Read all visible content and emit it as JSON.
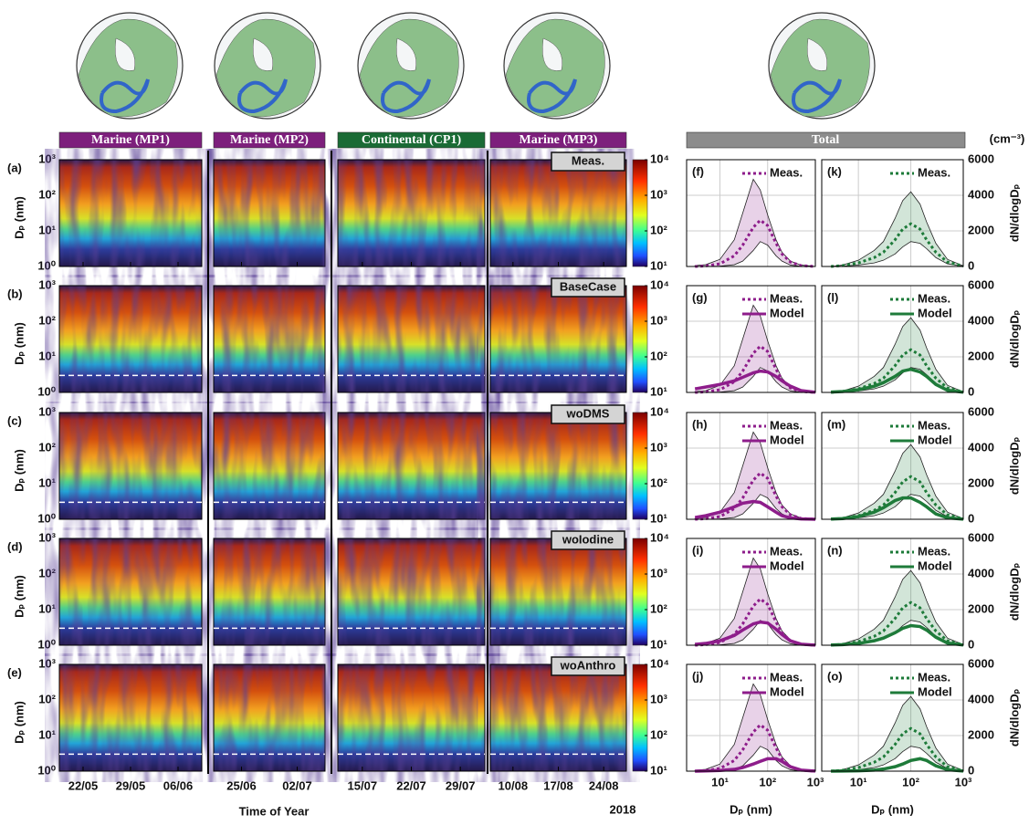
{
  "periods": [
    {
      "name": "Marine (MP1)",
      "color": "#7d1f7c",
      "dates": [
        "22/05",
        "29/05",
        "06/06"
      ]
    },
    {
      "name": "Marine (MP2)",
      "color": "#7d1f7c",
      "dates": [
        "25/06",
        "02/07"
      ]
    },
    {
      "name": "Continental (CP1)",
      "color": "#1a6b35",
      "dates": [
        "15/07",
        "22/07",
        "29/07"
      ]
    },
    {
      "name": "Marine (MP3)",
      "color": "#7d1f7c",
      "dates": [
        "10/08",
        "17/08",
        "24/08"
      ]
    }
  ],
  "total": {
    "name": "Total",
    "color": "#8c8c8c"
  },
  "unit": "(cm⁻³)",
  "rows": [
    {
      "panel": "(a)",
      "scenario": "Meas."
    },
    {
      "panel": "(b)",
      "scenario": "BaseCase"
    },
    {
      "panel": "(c)",
      "scenario": "woDMS"
    },
    {
      "panel": "(d)",
      "scenario": "woIodine"
    },
    {
      "panel": "(e)",
      "scenario": "woAnthro"
    }
  ],
  "heatmap_axis": {
    "ylabel": "Dₚ (nm)",
    "ylog": true,
    "ylim": [
      1,
      1000
    ],
    "yticks": [
      {
        "value": 1,
        "label": "10⁰"
      },
      {
        "value": 10,
        "label": "10¹"
      },
      {
        "value": 100,
        "label": "10²"
      },
      {
        "value": 1000,
        "label": "10³"
      }
    ],
    "cutoff": 3
  },
  "colorbar": {
    "log": true,
    "lim": [
      10,
      10000
    ],
    "ticks": [
      {
        "value": 10,
        "label": "10¹"
      },
      {
        "value": 100,
        "label": "10²"
      },
      {
        "value": 1000,
        "label": "10³"
      },
      {
        "value": 10000,
        "label": "10⁴"
      }
    ]
  },
  "xlabel": "Time of Year",
  "year": "2018",
  "dist_axes": {
    "x": [
      3,
      5,
      10,
      20,
      30,
      50,
      70,
      100,
      150,
      200,
      300,
      500,
      1000
    ],
    "xlog": true,
    "xlim": [
      2,
      1000
    ],
    "xticks": [
      {
        "value": 10,
        "label": "10¹"
      },
      {
        "value": 100,
        "label": "10²"
      },
      {
        "value": 1000,
        "label": "10³"
      }
    ],
    "ylim": [
      0,
      6000
    ],
    "yticks": [
      0,
      2000,
      4000,
      6000
    ],
    "xlabel": "Dₚ (nm)",
    "ylabel": "dN/dlogDₚ",
    "grid": true
  },
  "chart_data": [
    {
      "type": "line",
      "label": "(f)",
      "series": [
        {
          "name": "Meas.",
          "color": "#8e1d8b",
          "dash": "dotted",
          "values": [
            0,
            30,
            150,
            600,
            1200,
            2200,
            2600,
            2300,
            1300,
            700,
            250,
            50,
            0
          ],
          "band_upper": [
            50,
            100,
            400,
            1500,
            3000,
            4900,
            4300,
            2900,
            1500,
            800,
            300,
            80,
            0
          ],
          "band_lower": [
            0,
            0,
            20,
            100,
            300,
            900,
            1400,
            1200,
            600,
            300,
            80,
            10,
            0
          ]
        }
      ]
    },
    {
      "type": "line",
      "label": "(g)",
      "series": [
        {
          "name": "Meas.",
          "color": "#8e1d8b",
          "dash": "dotted",
          "values": [
            0,
            30,
            150,
            600,
            1200,
            2200,
            2600,
            2300,
            1300,
            700,
            250,
            50,
            0
          ],
          "band_upper": [
            50,
            100,
            400,
            1500,
            3000,
            4900,
            4300,
            2900,
            1500,
            800,
            300,
            80,
            0
          ],
          "band_lower": [
            0,
            0,
            20,
            100,
            300,
            900,
            1400,
            1200,
            600,
            300,
            80,
            10,
            0
          ]
        },
        {
          "name": "Model",
          "color": "#8e1d8b",
          "dash": "solid",
          "values": [
            200,
            300,
            450,
            650,
            850,
            1100,
            1200,
            1150,
            900,
            650,
            350,
            100,
            10
          ]
        }
      ]
    },
    {
      "type": "line",
      "label": "(h)",
      "series": [
        {
          "name": "Meas.",
          "color": "#8e1d8b",
          "dash": "dotted",
          "values": [
            0,
            30,
            150,
            600,
            1200,
            2200,
            2600,
            2300,
            1300,
            700,
            250,
            50,
            0
          ],
          "band_upper": [
            50,
            100,
            400,
            1500,
            3000,
            4900,
            4300,
            2900,
            1500,
            800,
            300,
            80,
            0
          ],
          "band_lower": [
            0,
            0,
            20,
            100,
            300,
            900,
            1400,
            1200,
            600,
            300,
            80,
            10,
            0
          ]
        },
        {
          "name": "Model",
          "color": "#8e1d8b",
          "dash": "solid",
          "values": [
            100,
            200,
            400,
            700,
            900,
            1000,
            950,
            700,
            400,
            200,
            80,
            20,
            0
          ]
        }
      ]
    },
    {
      "type": "line",
      "label": "(i)",
      "series": [
        {
          "name": "Meas.",
          "color": "#8e1d8b",
          "dash": "dotted",
          "values": [
            0,
            30,
            150,
            600,
            1200,
            2200,
            2600,
            2300,
            1300,
            700,
            250,
            50,
            0
          ],
          "band_upper": [
            50,
            100,
            400,
            1500,
            3000,
            4900,
            4300,
            2900,
            1500,
            800,
            300,
            80,
            0
          ],
          "band_lower": [
            0,
            0,
            20,
            100,
            300,
            900,
            1400,
            1200,
            600,
            300,
            80,
            10,
            0
          ]
        },
        {
          "name": "Model",
          "color": "#8e1d8b",
          "dash": "solid",
          "values": [
            50,
            100,
            250,
            550,
            850,
            1200,
            1300,
            1250,
            900,
            600,
            250,
            60,
            5
          ]
        }
      ]
    },
    {
      "type": "line",
      "label": "(j)",
      "series": [
        {
          "name": "Meas.",
          "color": "#8e1d8b",
          "dash": "dotted",
          "values": [
            0,
            30,
            150,
            600,
            1200,
            2200,
            2600,
            2300,
            1300,
            700,
            250,
            50,
            0
          ],
          "band_upper": [
            50,
            100,
            400,
            1500,
            3000,
            4900,
            4300,
            2900,
            1500,
            800,
            300,
            80,
            0
          ],
          "band_lower": [
            0,
            0,
            20,
            100,
            300,
            900,
            1400,
            1200,
            600,
            300,
            80,
            10,
            0
          ]
        },
        {
          "name": "Model",
          "color": "#8e1d8b",
          "dash": "solid",
          "values": [
            0,
            10,
            40,
            100,
            200,
            400,
            550,
            700,
            700,
            550,
            250,
            60,
            5
          ]
        }
      ]
    },
    {
      "type": "line",
      "label": "(k)",
      "series": [
        {
          "name": "Meas.",
          "color": "#1e7b3a",
          "dash": "dotted",
          "values": [
            0,
            50,
            200,
            500,
            800,
            1500,
            2100,
            2400,
            2100,
            1500,
            800,
            250,
            20
          ],
          "band_upper": [
            0,
            80,
            350,
            900,
            1400,
            2700,
            3700,
            4200,
            3500,
            2500,
            1300,
            400,
            40
          ],
          "band_lower": [
            0,
            20,
            80,
            200,
            350,
            700,
            1100,
            1400,
            1300,
            1000,
            500,
            150,
            10
          ]
        }
      ]
    },
    {
      "type": "line",
      "label": "(l)",
      "series": [
        {
          "name": "Meas.",
          "color": "#1e7b3a",
          "dash": "dotted",
          "values": [
            0,
            50,
            200,
            500,
            800,
            1500,
            2100,
            2400,
            2100,
            1500,
            800,
            250,
            20
          ],
          "band_upper": [
            0,
            80,
            350,
            900,
            1400,
            2700,
            3700,
            4200,
            3500,
            2500,
            1300,
            400,
            40
          ],
          "band_lower": [
            0,
            20,
            80,
            200,
            350,
            700,
            1100,
            1400,
            1300,
            1000,
            500,
            150,
            10
          ]
        },
        {
          "name": "Model",
          "color": "#1e7b3a",
          "dash": "solid",
          "values": [
            20,
            50,
            150,
            350,
            550,
            900,
            1200,
            1300,
            1150,
            900,
            450,
            120,
            10
          ]
        }
      ]
    },
    {
      "type": "line",
      "label": "(m)",
      "series": [
        {
          "name": "Meas.",
          "color": "#1e7b3a",
          "dash": "dotted",
          "values": [
            0,
            50,
            200,
            500,
            800,
            1500,
            2100,
            2400,
            2100,
            1500,
            800,
            250,
            20
          ],
          "band_upper": [
            0,
            80,
            350,
            900,
            1400,
            2700,
            3700,
            4200,
            3500,
            2500,
            1300,
            400,
            40
          ],
          "band_lower": [
            0,
            20,
            80,
            200,
            350,
            700,
            1100,
            1400,
            1300,
            1000,
            500,
            150,
            10
          ]
        },
        {
          "name": "Model",
          "color": "#1e7b3a",
          "dash": "solid",
          "values": [
            10,
            40,
            150,
            400,
            650,
            1050,
            1200,
            1200,
            950,
            700,
            300,
            80,
            5
          ]
        }
      ]
    },
    {
      "type": "line",
      "label": "(n)",
      "series": [
        {
          "name": "Meas.",
          "color": "#1e7b3a",
          "dash": "dotted",
          "values": [
            0,
            50,
            200,
            500,
            800,
            1500,
            2100,
            2400,
            2100,
            1500,
            800,
            250,
            20
          ],
          "band_upper": [
            0,
            80,
            350,
            900,
            1400,
            2700,
            3700,
            4200,
            3500,
            2500,
            1300,
            400,
            40
          ],
          "band_lower": [
            0,
            20,
            80,
            200,
            350,
            700,
            1100,
            1400,
            1300,
            1000,
            500,
            150,
            10
          ]
        },
        {
          "name": "Model",
          "color": "#1e7b3a",
          "dash": "solid",
          "values": [
            10,
            30,
            100,
            250,
            400,
            700,
            950,
            1100,
            1050,
            850,
            450,
            120,
            10
          ]
        }
      ]
    },
    {
      "type": "line",
      "label": "(o)",
      "series": [
        {
          "name": "Meas.",
          "color": "#1e7b3a",
          "dash": "dotted",
          "values": [
            0,
            50,
            200,
            500,
            800,
            1500,
            2100,
            2400,
            2100,
            1500,
            800,
            250,
            20
          ],
          "band_upper": [
            0,
            80,
            350,
            900,
            1400,
            2700,
            3700,
            4200,
            3500,
            2500,
            1300,
            400,
            40
          ],
          "band_lower": [
            0,
            20,
            80,
            200,
            350,
            700,
            1100,
            1400,
            1300,
            1000,
            500,
            150,
            10
          ]
        },
        {
          "name": "Model",
          "color": "#1e7b3a",
          "dash": "solid",
          "values": [
            0,
            5,
            20,
            60,
            120,
            250,
            400,
            600,
            700,
            600,
            300,
            80,
            5
          ]
        }
      ]
    }
  ]
}
